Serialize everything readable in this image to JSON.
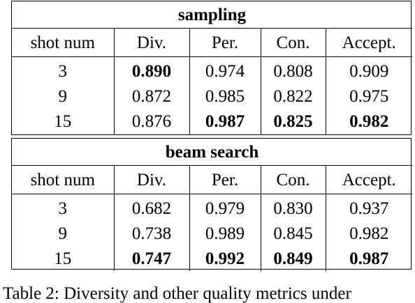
{
  "tables": [
    {
      "title": "sampling",
      "columns": [
        "shot num",
        "Div.",
        "Per.",
        "Con.",
        "Accept."
      ],
      "rows": [
        {
          "cells": [
            "3",
            "0.890",
            "0.974",
            "0.808",
            "0.909"
          ],
          "bold": [
            false,
            true,
            false,
            false,
            false
          ]
        },
        {
          "cells": [
            "9",
            "0.872",
            "0.985",
            "0.822",
            "0.975"
          ],
          "bold": [
            false,
            false,
            false,
            false,
            false
          ]
        },
        {
          "cells": [
            "15",
            "0.876",
            "0.987",
            "0.825",
            "0.982"
          ],
          "bold": [
            false,
            false,
            true,
            true,
            true
          ]
        }
      ]
    },
    {
      "title": "beam search",
      "columns": [
        "shot num",
        "Div.",
        "Per.",
        "Con.",
        "Accept."
      ],
      "rows": [
        {
          "cells": [
            "3",
            "0.682",
            "0.979",
            "0.830",
            "0.937"
          ],
          "bold": [
            false,
            false,
            false,
            false,
            false
          ]
        },
        {
          "cells": [
            "9",
            "0.738",
            "0.989",
            "0.845",
            "0.982"
          ],
          "bold": [
            false,
            false,
            false,
            false,
            false
          ]
        },
        {
          "cells": [
            "15",
            "0.747",
            "0.992",
            "0.849",
            "0.987"
          ],
          "bold": [
            false,
            true,
            true,
            true,
            true
          ]
        }
      ]
    }
  ],
  "caption": "Table 2: Diversity and other quality metrics under"
}
